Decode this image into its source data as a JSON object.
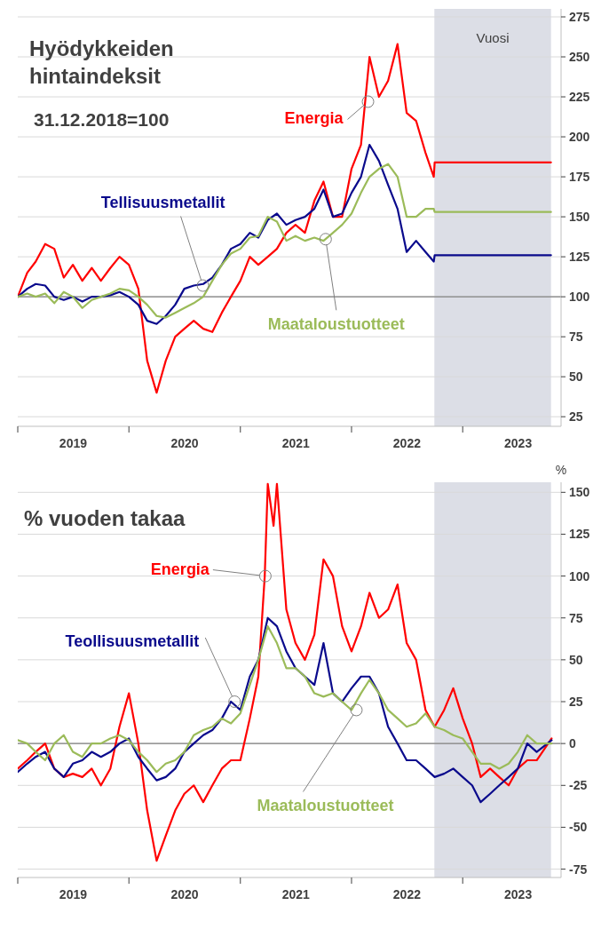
{
  "chart_data": [
    {
      "type": "line",
      "title": "Hyödykkeiden hintaindeksit",
      "subtitle": "31.12.2018=100",
      "x": [
        "2019-01",
        "2019-02",
        "2019-03",
        "2019-04",
        "2019-05",
        "2019-06",
        "2019-07",
        "2019-08",
        "2019-09",
        "2019-10",
        "2019-11",
        "2019-12",
        "2020-01",
        "2020-02",
        "2020-03",
        "2020-04",
        "2020-05",
        "2020-06",
        "2020-07",
        "2020-08",
        "2020-09",
        "2020-10",
        "2020-11",
        "2020-12",
        "2021-01",
        "2021-02",
        "2021-03",
        "2021-04",
        "2021-05",
        "2021-06",
        "2021-07",
        "2021-08",
        "2021-09",
        "2021-10",
        "2021-11",
        "2021-12",
        "2022-01",
        "2022-02",
        "2022-03",
        "2022-04",
        "2022-05",
        "2022-06",
        "2022-07",
        "2022-08",
        "2022-09",
        "2022-09-28",
        "2022-10-01",
        "2023-10-18"
      ],
      "series": [
        {
          "color": "#ff0000",
          "values": [
            100,
            115,
            122,
            133,
            130,
            112,
            120,
            110,
            118,
            110,
            118,
            125,
            120,
            105,
            60,
            40,
            60,
            75,
            80,
            85,
            80,
            78,
            90,
            100,
            110,
            125,
            120,
            125,
            130,
            140,
            145,
            140,
            160,
            172,
            150,
            150,
            180,
            195,
            250,
            225,
            235,
            258,
            215,
            210,
            190,
            175,
            184,
            184
          ]
        },
        {
          "color": "#0a0a8c",
          "values": [
            100,
            105,
            108,
            107,
            100,
            98,
            100,
            97,
            100,
            100,
            101,
            103,
            100,
            95,
            85,
            83,
            88,
            95,
            105,
            107,
            108,
            112,
            120,
            130,
            133,
            140,
            137,
            148,
            152,
            145,
            148,
            150,
            155,
            167,
            150,
            152,
            165,
            175,
            195,
            185,
            170,
            155,
            128,
            135,
            128,
            122,
            126,
            126
          ]
        },
        {
          "color": "#9bbb59",
          "values": [
            100,
            102,
            100,
            102,
            96,
            103,
            100,
            93,
            98,
            100,
            102,
            105,
            104,
            100,
            95,
            88,
            87,
            90,
            93,
            96,
            100,
            110,
            120,
            127,
            130,
            137,
            138,
            150,
            147,
            135,
            138,
            135,
            137,
            135,
            140,
            145,
            152,
            165,
            175,
            180,
            183,
            175,
            150,
            150,
            155,
            155,
            153,
            153
          ]
        }
      ],
      "xlim": [
        "2019-01-01",
        "2023-11-20"
      ],
      "xticks": [
        {
          "value": "2019-01-01",
          "label": null
        },
        {
          "value": "2019-07-02",
          "label": "2019"
        },
        {
          "value": "2020-01-01",
          "label": null
        },
        {
          "value": "2020-07-02",
          "label": "2020"
        },
        {
          "value": "2021-01-01",
          "label": null
        },
        {
          "value": "2021-07-02",
          "label": "2021"
        },
        {
          "value": "2022-01-01",
          "label": null
        },
        {
          "value": "2022-07-02",
          "label": "2022"
        },
        {
          "value": "2023-01-01",
          "label": null
        },
        {
          "value": "2023-07-02",
          "label": "2023"
        }
      ],
      "ylim": [
        19,
        280
      ],
      "yticks": [
        25,
        50,
        75,
        100,
        125,
        150,
        175,
        200,
        225,
        250,
        275
      ],
      "grid": "y",
      "ref_lines": [
        {
          "axis": "y",
          "value": 100,
          "color": "#808080"
        }
      ],
      "bands": [
        {
          "axis": "x",
          "from": "2022-09-30",
          "to": "2023-10-18",
          "label": "Vuosi",
          "color": "#dcdee6"
        }
      ],
      "annotations": [
        {
          "text": "Energia",
          "x": "2022-02-24",
          "y": 222
        },
        {
          "text": "Tellisuusmetallit",
          "x": "2020-08-31",
          "y": 107
        },
        {
          "text": "Maataloustuotteet",
          "x": "2021-10-08",
          "y": 136
        }
      ]
    },
    {
      "type": "line",
      "title": "% vuoden takaa",
      "ylabel": "%",
      "x": [
        "2019-01",
        "2019-02",
        "2019-03",
        "2019-04",
        "2019-05",
        "2019-06",
        "2019-07",
        "2019-08",
        "2019-09",
        "2019-10",
        "2019-11",
        "2019-12",
        "2020-01",
        "2020-02",
        "2020-03",
        "2020-04",
        "2020-05",
        "2020-06",
        "2020-07",
        "2020-08",
        "2020-09",
        "2020-10",
        "2020-11",
        "2020-12",
        "2021-01",
        "2021-02",
        "2021-03",
        "2021-04",
        "2021-05",
        "2021-06",
        "2021-07",
        "2021-08",
        "2021-09",
        "2021-10",
        "2021-11",
        "2021-12",
        "2022-01",
        "2022-02",
        "2022-03",
        "2022-04",
        "2022-05",
        "2022-06",
        "2022-07",
        "2022-08",
        "2022-09",
        "2022-10",
        "2022-11",
        "2022-12",
        "2023-01",
        "2023-02",
        "2023-03",
        "2023-04",
        "2023-05",
        "2023-06",
        "2023-07",
        "2023-08",
        "2023-09",
        "2023-10-20"
      ],
      "series": [
        {
          "color": "#ff0000",
          "x": [
            "2019-01",
            "2019-02",
            "2019-03",
            "2019-04",
            "2019-05",
            "2019-06",
            "2019-07",
            "2019-08",
            "2019-09",
            "2019-10",
            "2019-11",
            "2019-12",
            "2020-01",
            "2020-02",
            "2020-03",
            "2020-04",
            "2020-05",
            "2020-06",
            "2020-07",
            "2020-08",
            "2020-09",
            "2020-10",
            "2020-11",
            "2020-12",
            "2021-01",
            "2021-02",
            "2021-03-01",
            "2021-03-22",
            "2021-04",
            "2021-04-20",
            "2021-05",
            "2021-06",
            "2021-07",
            "2021-08",
            "2021-09",
            "2021-10",
            "2021-11",
            "2021-12",
            "2022-01",
            "2022-02",
            "2022-03",
            "2022-04",
            "2022-05",
            "2022-06",
            "2022-07",
            "2022-08",
            "2022-09",
            "2022-10",
            "2022-11",
            "2022-12",
            "2023-01",
            "2023-02",
            "2023-03",
            "2023-04",
            "2023-05",
            "2023-06",
            "2023-07",
            "2023-08",
            "2023-09",
            "2023-10-20"
          ],
          "values": [
            -15,
            -10,
            -5,
            0,
            -15,
            -20,
            -18,
            -20,
            -15,
            -25,
            -15,
            10,
            30,
            0,
            -40,
            -70,
            -55,
            -40,
            -30,
            -25,
            -35,
            -25,
            -15,
            -10,
            -10,
            15,
            40,
            100,
            155,
            130,
            155,
            80,
            60,
            50,
            65,
            110,
            100,
            70,
            55,
            70,
            90,
            75,
            80,
            95,
            60,
            50,
            20,
            10,
            20,
            33,
            15,
            0,
            -20,
            -15,
            -20,
            -25,
            -15,
            -10,
            -10,
            3
          ]
        },
        {
          "color": "#0a0a8c",
          "values": [
            -17,
            -12,
            -8,
            -5,
            -15,
            -20,
            -12,
            -10,
            -5,
            -8,
            -5,
            0,
            3,
            -8,
            -15,
            -22,
            -20,
            -15,
            -5,
            0,
            5,
            8,
            15,
            25,
            20,
            40,
            50,
            75,
            70,
            55,
            45,
            40,
            35,
            60,
            30,
            25,
            33,
            40,
            40,
            30,
            10,
            0,
            -10,
            -10,
            -15,
            -20,
            -18,
            -15,
            -20,
            -25,
            -35,
            -30,
            -25,
            -20,
            -15,
            0,
            -5,
            2
          ]
        },
        {
          "color": "#9bbb59",
          "values": [
            2,
            0,
            -5,
            -10,
            0,
            5,
            -5,
            -8,
            0,
            0,
            3,
            5,
            2,
            -5,
            -10,
            -17,
            -12,
            -10,
            -5,
            5,
            8,
            10,
            15,
            12,
            18,
            35,
            50,
            70,
            60,
            45,
            45,
            40,
            30,
            28,
            30,
            25,
            20,
            30,
            38,
            30,
            20,
            15,
            10,
            12,
            18,
            10,
            8,
            5,
            3,
            -5,
            -12,
            -12,
            -15,
            -12,
            -5,
            5,
            0,
            0
          ]
        }
      ],
      "xlim": [
        "2019-01-01",
        "2023-11-20"
      ],
      "xticks": [
        {
          "value": "2019-01-01",
          "label": null
        },
        {
          "value": "2019-07-02",
          "label": "2019"
        },
        {
          "value": "2020-01-01",
          "label": null
        },
        {
          "value": "2020-07-02",
          "label": "2020"
        },
        {
          "value": "2021-01-01",
          "label": null
        },
        {
          "value": "2021-07-02",
          "label": "2021"
        },
        {
          "value": "2022-01-01",
          "label": null
        },
        {
          "value": "2022-07-02",
          "label": "2022"
        },
        {
          "value": "2023-01-01",
          "label": null
        },
        {
          "value": "2023-07-02",
          "label": "2023"
        }
      ],
      "ylim": [
        -80,
        156
      ],
      "yticks": [
        -75,
        -50,
        -25,
        0,
        25,
        50,
        75,
        100,
        125,
        150
      ],
      "grid": "y",
      "ref_lines": [
        {
          "axis": "y",
          "value": 0,
          "color": "#808080"
        }
      ],
      "bands": [
        {
          "axis": "x",
          "from": "2022-09-30",
          "to": "2023-10-18",
          "color": "#dcdee6"
        }
      ],
      "annotations": [
        {
          "text": "Energia",
          "x": "2021-03-24",
          "y": 100
        },
        {
          "text": "Teollisuusmetallit",
          "x": "2020-12-13",
          "y": 25
        },
        {
          "text": "Maataloustuotteet",
          "x": "2022-01-17",
          "y": 20
        }
      ]
    }
  ]
}
